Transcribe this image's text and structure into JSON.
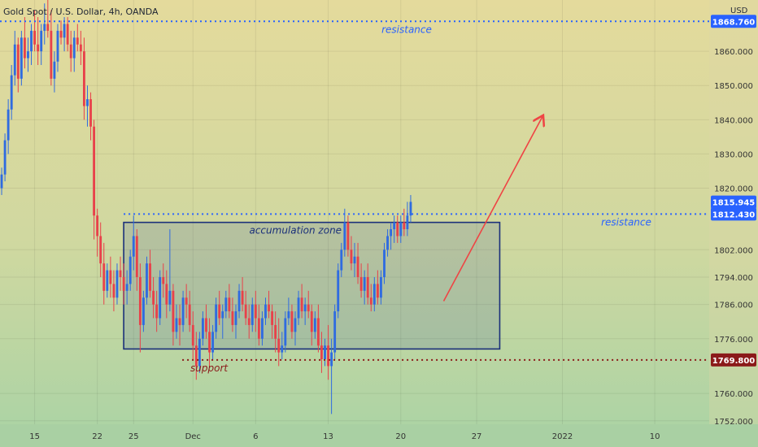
{
  "header": {
    "symbol_line": "Gold Spot / U.S. Dollar, 4h, OANDA",
    "currency": "USD"
  },
  "chart_data": {
    "type": "candlestick",
    "instrument": "Gold Spot / U.S. Dollar",
    "timeframe": "4h",
    "source": "OANDA",
    "ylim": [
      1751,
      1875
    ],
    "y_ticks": [
      "1752.000",
      "1760.000",
      "1776.000",
      "1786.000",
      "1794.000",
      "1802.000",
      "1820.000",
      "1830.000",
      "1840.000",
      "1850.000",
      "1860.000"
    ],
    "x_ticks": [
      {
        "label": "15",
        "index": 10
      },
      {
        "label": "22",
        "index": 29
      },
      {
        "label": "25",
        "index": 40
      },
      {
        "label": "Dec",
        "index": 58
      },
      {
        "label": "6",
        "index": 77
      },
      {
        "label": "13",
        "index": 99
      },
      {
        "label": "20",
        "index": 121
      },
      {
        "label": "27",
        "index": 144
      },
      {
        "label": "2022",
        "index": 170
      },
      {
        "label": "10",
        "index": 198
      }
    ],
    "x_count": 215,
    "grid": true,
    "levels": [
      {
        "kind": "resistance",
        "price": 1868.76,
        "price_label": "1868.760",
        "text": "resistance",
        "color": "#2962ff"
      },
      {
        "kind": "resistance",
        "price": 1812.43,
        "price_label": "1812.430",
        "text": "resistance",
        "color": "#2962ff"
      },
      {
        "kind": "support",
        "price": 1769.8,
        "price_label": "1769.800",
        "text": "support",
        "color": "#8b1a1a"
      }
    ],
    "last_price": {
      "price": 1815.945,
      "label": "1815.945",
      "color": "#2962ff"
    },
    "accumulation_zone": {
      "label": "accumulation zone",
      "from_index": 37,
      "to_index": 151,
      "top": 1810,
      "bottom": 1773
    },
    "projection_arrow": {
      "from_index": 134,
      "from_price": 1787,
      "to_index": 164,
      "to_price": 1841
    },
    "candles": [
      [
        1820,
        1826,
        1818,
        1824
      ],
      [
        1824,
        1836,
        1822,
        1834
      ],
      [
        1834,
        1846,
        1830,
        1843
      ],
      [
        1843,
        1856,
        1840,
        1853
      ],
      [
        1853,
        1866,
        1850,
        1862
      ],
      [
        1862,
        1864,
        1848,
        1852
      ],
      [
        1852,
        1866,
        1850,
        1864
      ],
      [
        1864,
        1870,
        1855,
        1858
      ],
      [
        1858,
        1864,
        1854,
        1860
      ],
      [
        1860,
        1868,
        1856,
        1866
      ],
      [
        1866,
        1872,
        1860,
        1862
      ],
      [
        1862,
        1870,
        1856,
        1860
      ],
      [
        1860,
        1868,
        1856,
        1866
      ],
      [
        1866,
        1874,
        1862,
        1868
      ],
      [
        1868,
        1877,
        1864,
        1866
      ],
      [
        1866,
        1872,
        1850,
        1852
      ],
      [
        1852,
        1860,
        1848,
        1857
      ],
      [
        1857,
        1868,
        1854,
        1866
      ],
      [
        1866,
        1869,
        1862,
        1864
      ],
      [
        1864,
        1870,
        1860,
        1868
      ],
      [
        1868,
        1870,
        1860,
        1862
      ],
      [
        1862,
        1866,
        1854,
        1858
      ],
      [
        1858,
        1866,
        1854,
        1864
      ],
      [
        1864,
        1868,
        1860,
        1862
      ],
      [
        1862,
        1866,
        1856,
        1860
      ],
      [
        1860,
        1864,
        1840,
        1844
      ],
      [
        1844,
        1850,
        1838,
        1846
      ],
      [
        1846,
        1848,
        1834,
        1838
      ],
      [
        1838,
        1840,
        1805,
        1812
      ],
      [
        1812,
        1814,
        1800,
        1806
      ],
      [
        1806,
        1810,
        1794,
        1798
      ],
      [
        1798,
        1804,
        1786,
        1790
      ],
      [
        1790,
        1798,
        1788,
        1796
      ],
      [
        1796,
        1800,
        1788,
        1792
      ],
      [
        1792,
        1796,
        1784,
        1788
      ],
      [
        1788,
        1798,
        1786,
        1796
      ],
      [
        1796,
        1800,
        1790,
        1794
      ],
      [
        1794,
        1798,
        1786,
        1790
      ],
      [
        1790,
        1796,
        1786,
        1792
      ],
      [
        1792,
        1802,
        1790,
        1800
      ],
      [
        1800,
        1812,
        1796,
        1806
      ],
      [
        1806,
        1808,
        1790,
        1794
      ],
      [
        1794,
        1798,
        1772,
        1780
      ],
      [
        1780,
        1790,
        1778,
        1788
      ],
      [
        1788,
        1800,
        1786,
        1798
      ],
      [
        1798,
        1802,
        1788,
        1790
      ],
      [
        1790,
        1794,
        1782,
        1786
      ],
      [
        1786,
        1790,
        1778,
        1782
      ],
      [
        1782,
        1796,
        1780,
        1794
      ],
      [
        1794,
        1798,
        1788,
        1792
      ],
      [
        1792,
        1796,
        1782,
        1786
      ],
      [
        1786,
        1808,
        1784,
        1790
      ],
      [
        1790,
        1792,
        1774,
        1778
      ],
      [
        1778,
        1786,
        1776,
        1782
      ],
      [
        1782,
        1786,
        1774,
        1780
      ],
      [
        1780,
        1790,
        1778,
        1788
      ],
      [
        1788,
        1792,
        1782,
        1786
      ],
      [
        1786,
        1790,
        1778,
        1780
      ],
      [
        1780,
        1784,
        1770,
        1774
      ],
      [
        1774,
        1778,
        1764,
        1768
      ],
      [
        1768,
        1778,
        1766,
        1776
      ],
      [
        1776,
        1784,
        1774,
        1782
      ],
      [
        1782,
        1786,
        1776,
        1778
      ],
      [
        1778,
        1782,
        1768,
        1772
      ],
      [
        1772,
        1780,
        1770,
        1778
      ],
      [
        1778,
        1788,
        1776,
        1786
      ],
      [
        1786,
        1790,
        1780,
        1782
      ],
      [
        1782,
        1786,
        1776,
        1784
      ],
      [
        1784,
        1790,
        1782,
        1788
      ],
      [
        1788,
        1792,
        1782,
        1784
      ],
      [
        1784,
        1788,
        1778,
        1780
      ],
      [
        1780,
        1786,
        1776,
        1784
      ],
      [
        1784,
        1792,
        1782,
        1790
      ],
      [
        1790,
        1794,
        1784,
        1786
      ],
      [
        1786,
        1790,
        1780,
        1782
      ],
      [
        1782,
        1786,
        1776,
        1780
      ],
      [
        1780,
        1788,
        1778,
        1786
      ],
      [
        1786,
        1790,
        1778,
        1782
      ],
      [
        1782,
        1786,
        1774,
        1776
      ],
      [
        1776,
        1784,
        1774,
        1782
      ],
      [
        1782,
        1788,
        1780,
        1786
      ],
      [
        1786,
        1790,
        1782,
        1784
      ],
      [
        1784,
        1786,
        1776,
        1780
      ],
      [
        1780,
        1784,
        1772,
        1776
      ],
      [
        1776,
        1782,
        1768,
        1772
      ],
      [
        1772,
        1778,
        1770,
        1774
      ],
      [
        1774,
        1784,
        1772,
        1782
      ],
      [
        1782,
        1788,
        1780,
        1784
      ],
      [
        1784,
        1786,
        1776,
        1778
      ],
      [
        1778,
        1784,
        1774,
        1782
      ],
      [
        1782,
        1790,
        1780,
        1788
      ],
      [
        1788,
        1792,
        1782,
        1784
      ],
      [
        1784,
        1788,
        1780,
        1786
      ],
      [
        1786,
        1790,
        1782,
        1784
      ],
      [
        1784,
        1786,
        1774,
        1778
      ],
      [
        1778,
        1784,
        1776,
        1782
      ],
      [
        1782,
        1786,
        1772,
        1774
      ],
      [
        1774,
        1778,
        1766,
        1770
      ],
      [
        1770,
        1776,
        1768,
        1774
      ],
      [
        1774,
        1780,
        1764,
        1768
      ],
      [
        1768,
        1776,
        1754,
        1772
      ],
      [
        1772,
        1786,
        1770,
        1784
      ],
      [
        1784,
        1798,
        1782,
        1796
      ],
      [
        1796,
        1804,
        1794,
        1802
      ],
      [
        1802,
        1814,
        1800,
        1810
      ],
      [
        1810,
        1812,
        1800,
        1802
      ],
      [
        1802,
        1806,
        1796,
        1798
      ],
      [
        1798,
        1804,
        1794,
        1800
      ],
      [
        1800,
        1804,
        1792,
        1794
      ],
      [
        1794,
        1798,
        1788,
        1790
      ],
      [
        1790,
        1796,
        1786,
        1794
      ],
      [
        1794,
        1798,
        1786,
        1788
      ],
      [
        1788,
        1792,
        1784,
        1786
      ],
      [
        1786,
        1794,
        1784,
        1792
      ],
      [
        1792,
        1796,
        1786,
        1788
      ],
      [
        1788,
        1796,
        1786,
        1794
      ],
      [
        1794,
        1804,
        1792,
        1802
      ],
      [
        1802,
        1808,
        1800,
        1806
      ],
      [
        1806,
        1810,
        1802,
        1808
      ],
      [
        1808,
        1812,
        1804,
        1810
      ],
      [
        1810,
        1812,
        1804,
        1806
      ],
      [
        1806,
        1812,
        1804,
        1810
      ],
      [
        1810,
        1814,
        1806,
        1808
      ],
      [
        1808,
        1816,
        1806,
        1812
      ],
      [
        1812,
        1818,
        1810,
        1816
      ]
    ]
  }
}
